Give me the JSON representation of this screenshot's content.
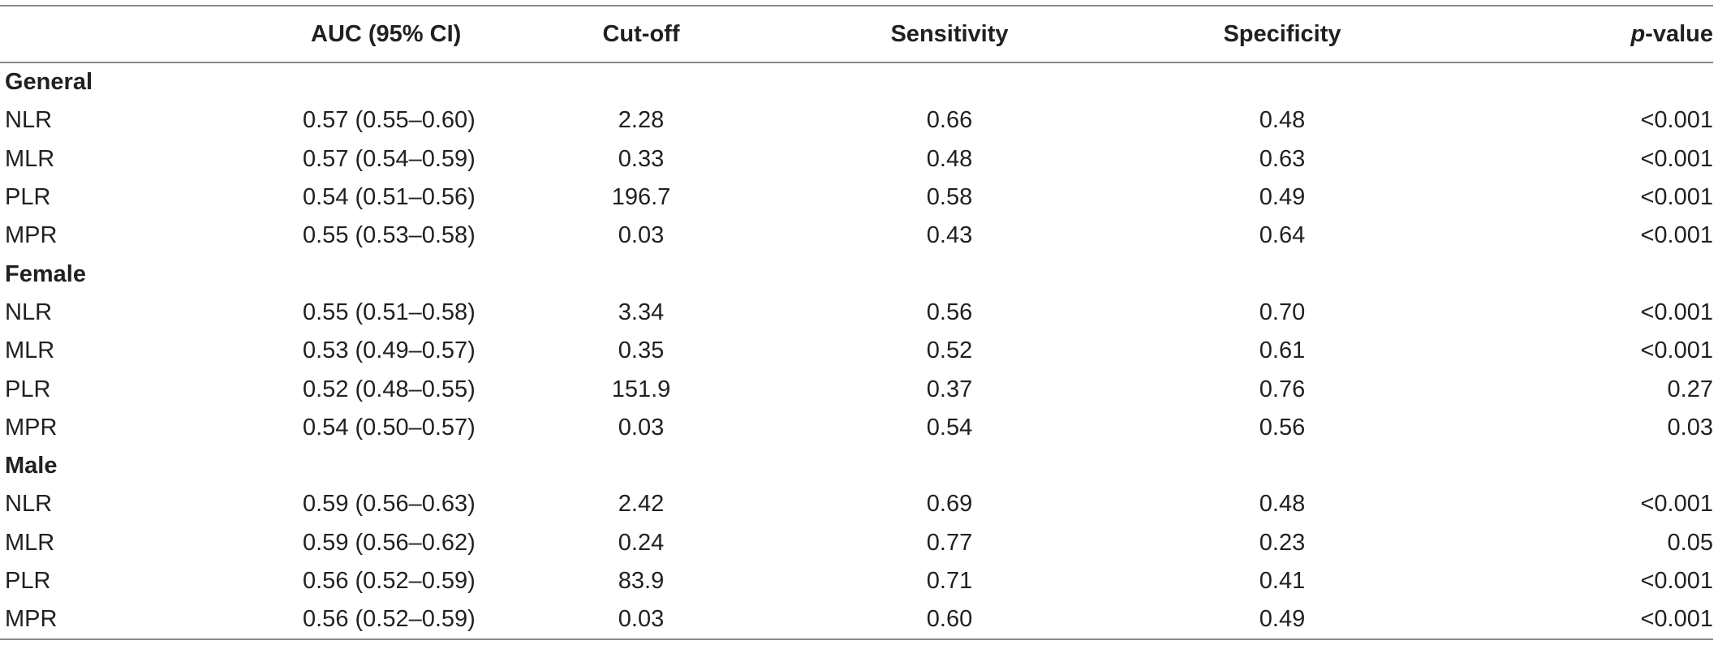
{
  "header": {
    "metric": "",
    "auc": "AUC (95% CI)",
    "cutoff": "Cut-off",
    "sensitivity": "Sensitivity",
    "specificity": "Specificity",
    "p_prefix": "p",
    "p_suffix": "-value"
  },
  "groups": [
    {
      "name": "General",
      "rows": [
        {
          "metric": "NLR",
          "auc": "0.57 (0.55–0.60)",
          "cutoff": "2.28",
          "sensitivity": "0.66",
          "specificity": "0.48",
          "p": "<0.001"
        },
        {
          "metric": "MLR",
          "auc": "0.57 (0.54–0.59)",
          "cutoff": "0.33",
          "sensitivity": "0.48",
          "specificity": "0.63",
          "p": "<0.001"
        },
        {
          "metric": "PLR",
          "auc": "0.54 (0.51–0.56)",
          "cutoff": "196.7",
          "sensitivity": "0.58",
          "specificity": "0.49",
          "p": "<0.001"
        },
        {
          "metric": "MPR",
          "auc": "0.55 (0.53–0.58)",
          "cutoff": "0.03",
          "sensitivity": "0.43",
          "specificity": "0.64",
          "p": "<0.001"
        }
      ]
    },
    {
      "name": "Female",
      "rows": [
        {
          "metric": "NLR",
          "auc": "0.55 (0.51–0.58)",
          "cutoff": "3.34",
          "sensitivity": "0.56",
          "specificity": "0.70",
          "p": "<0.001"
        },
        {
          "metric": "MLR",
          "auc": "0.53 (0.49–0.57)",
          "cutoff": "0.35",
          "sensitivity": "0.52",
          "specificity": "0.61",
          "p": "<0.001"
        },
        {
          "metric": "PLR",
          "auc": "0.52 (0.48–0.55)",
          "cutoff": "151.9",
          "sensitivity": "0.37",
          "specificity": "0.76",
          "p": "0.27"
        },
        {
          "metric": "MPR",
          "auc": "0.54 (0.50–0.57)",
          "cutoff": "0.03",
          "sensitivity": "0.54",
          "specificity": "0.56",
          "p": "0.03"
        }
      ]
    },
    {
      "name": "Male",
      "rows": [
        {
          "metric": "NLR",
          "auc": "0.59 (0.56–0.63)",
          "cutoff": "2.42",
          "sensitivity": "0.69",
          "specificity": "0.48",
          "p": "<0.001"
        },
        {
          "metric": "MLR",
          "auc": "0.59 (0.56–0.62)",
          "cutoff": "0.24",
          "sensitivity": "0.77",
          "specificity": "0.23",
          "p": "0.05"
        },
        {
          "metric": "PLR",
          "auc": "0.56 (0.52–0.59)",
          "cutoff": "83.9",
          "sensitivity": "0.71",
          "specificity": "0.41",
          "p": "<0.001"
        },
        {
          "metric": "MPR",
          "auc": "0.56 (0.52–0.59)",
          "cutoff": "0.03",
          "sensitivity": "0.60",
          "specificity": "0.49",
          "p": "<0.001"
        }
      ]
    }
  ]
}
